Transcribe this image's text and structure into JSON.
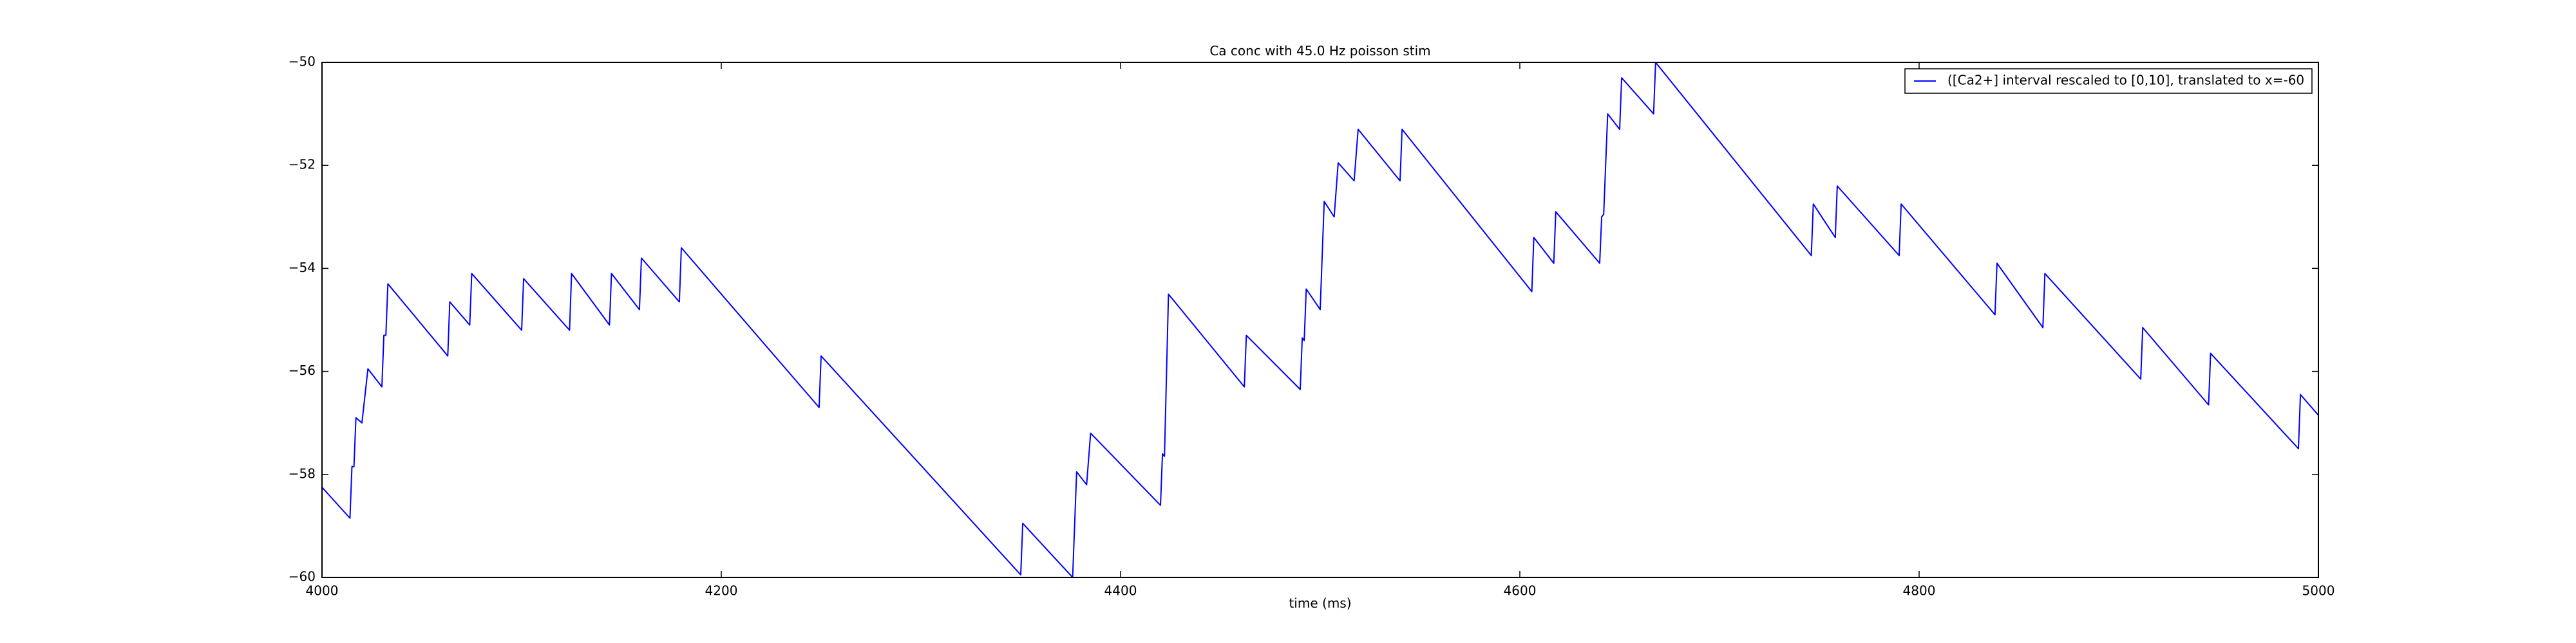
{
  "chart_data": {
    "type": "line",
    "title": "Ca conc with 45.0 Hz poisson stim",
    "x_label": "time (ms)",
    "xlim": [
      4000,
      5000
    ],
    "ylim": [
      -60,
      -50
    ],
    "xticks": [
      4000,
      4200,
      4400,
      4600,
      4800,
      5000
    ],
    "yticks": [
      {
        "value": -60,
        "label": "−60"
      },
      {
        "value": -58,
        "label": "−58"
      },
      {
        "value": -56,
        "label": "−56"
      },
      {
        "value": -54,
        "label": "−54"
      },
      {
        "value": -52,
        "label": "−52"
      },
      {
        "value": -50,
        "label": "−50"
      }
    ],
    "legend_loc": "upper right",
    "series": [
      {
        "name": "([Ca2+] interval rescaled to [0,10], translated to x=-60",
        "color": "#0000ff",
        "x": [
          4000,
          4014,
          4015,
          4016,
          4017,
          4020,
          4023,
          4030,
          4031,
          4032,
          4033,
          4063,
          4064,
          4074,
          4075,
          4100,
          4101,
          4124,
          4125,
          4144,
          4145,
          4159,
          4160,
          4179,
          4180,
          4249,
          4250,
          4350,
          4351,
          4376,
          4378,
          4383,
          4385,
          4420,
          4421,
          4422,
          4424,
          4462,
          4463,
          4490,
          4491,
          4492,
          4493,
          4500,
          4502,
          4507,
          4509,
          4517,
          4519,
          4540,
          4541,
          4606,
          4607,
          4617,
          4618,
          4640,
          4641,
          4642,
          4644,
          4650,
          4651,
          4667,
          4668,
          4746,
          4747,
          4758,
          4759,
          4790,
          4791,
          4838,
          4839,
          4862,
          4863,
          4911,
          4912,
          4945,
          4946,
          4990,
          4991,
          5000
        ],
        "values": [
          -58.25,
          -58.85,
          -57.85,
          -57.85,
          -56.9,
          -57.0,
          -55.95,
          -56.3,
          -55.3,
          -55.3,
          -54.3,
          -55.7,
          -54.65,
          -55.1,
          -54.1,
          -55.2,
          -54.2,
          -55.2,
          -54.1,
          -55.1,
          -54.1,
          -54.8,
          -53.8,
          -54.65,
          -53.6,
          -56.7,
          -55.7,
          -59.95,
          -58.95,
          -60.0,
          -57.95,
          -58.2,
          -57.2,
          -58.6,
          -57.6,
          -57.65,
          -54.5,
          -56.3,
          -55.3,
          -56.35,
          -55.35,
          -55.4,
          -54.4,
          -54.8,
          -52.7,
          -53.0,
          -51.95,
          -52.3,
          -51.3,
          -52.3,
          -51.3,
          -54.45,
          -53.4,
          -53.9,
          -52.9,
          -53.9,
          -53.0,
          -52.95,
          -51.0,
          -51.3,
          -50.3,
          -51.0,
          -50.0,
          -53.75,
          -52.75,
          -53.4,
          -52.4,
          -53.75,
          -52.75,
          -54.9,
          -53.9,
          -55.15,
          -54.1,
          -56.15,
          -55.15,
          -56.65,
          -55.65,
          -57.5,
          -56.45,
          -56.85
        ]
      }
    ]
  }
}
